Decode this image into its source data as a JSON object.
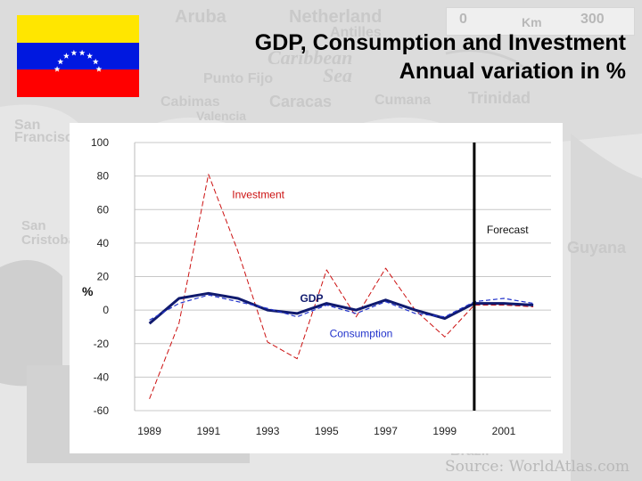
{
  "slide": {
    "title_line1": "GDP, Consumption and Investment",
    "title_line2": "Annual variation in %"
  },
  "flag": {
    "name": "Venezuela flag",
    "colors": [
      "#ffe600",
      "#0018e0",
      "#ff0000"
    ],
    "star_color": "#ffffff"
  },
  "background_map": {
    "labels": [
      "Aruba",
      "Netherland",
      "Antilles",
      "Caribbean",
      "Sea",
      "Punto Fijo",
      "Cabimas",
      "Caracas",
      "Cumana",
      "Trinidad",
      "Valencia",
      "San Francisco",
      "San Cristobal",
      "Guyana",
      "Brazil",
      "0",
      "300"
    ],
    "scale_label": "Km",
    "source": "Source: WorldAtlas.com"
  },
  "chart_data": {
    "type": "line",
    "title": "",
    "ylabel": "%",
    "xlabel": "",
    "ylim": [
      -60,
      100
    ],
    "yticks": [
      "100",
      "80",
      "60",
      "40",
      "20",
      "0",
      "-20",
      "-40",
      "-60"
    ],
    "ytick_values": [
      100,
      80,
      60,
      40,
      20,
      0,
      -20,
      -40,
      -60
    ],
    "x": [
      1989,
      1990,
      1991,
      1992,
      1993,
      1994,
      1995,
      1996,
      1997,
      1998,
      1999,
      2000,
      2001,
      2002
    ],
    "xticks": [
      "1989",
      "1991",
      "1993",
      "1995",
      "1997",
      "1999",
      "2001"
    ],
    "xtick_values": [
      1989,
      1991,
      1993,
      1995,
      1997,
      1999,
      2001
    ],
    "xlim": [
      1988.5,
      2002.6
    ],
    "forecast_year": 2000,
    "forecast_label": "Forecast",
    "series": [
      {
        "name": "Investment",
        "color": "#cc1111",
        "values": [
          -53,
          -8,
          81,
          35,
          -19,
          -29,
          24,
          -4,
          25,
          0,
          -16,
          3,
          3,
          2
        ]
      },
      {
        "name": "GDP",
        "color": "#101a6e",
        "values": [
          -8,
          7,
          10,
          7,
          0,
          -2,
          4,
          0,
          6,
          0,
          -5,
          4,
          4,
          3
        ]
      },
      {
        "name": "Consumption",
        "color": "#2233cc",
        "values": [
          -6,
          4,
          9,
          5,
          1,
          -4,
          3,
          -2,
          5,
          -2,
          -4,
          5,
          7,
          4
        ]
      }
    ],
    "labels": {
      "investment": "Investment",
      "gdp": "GDP",
      "consumption": "Consumption"
    }
  }
}
